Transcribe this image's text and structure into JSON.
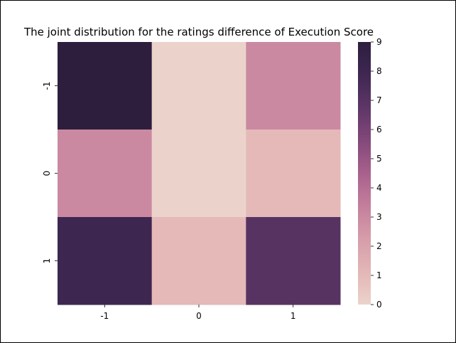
{
  "chart_data": {
    "type": "heatmap",
    "title": "The joint distribution for the ratings difference of Execution Score",
    "xlabel": "",
    "ylabel": "",
    "x_categories": [
      "-1",
      "0",
      "1"
    ],
    "y_categories": [
      "-1",
      "0",
      "1"
    ],
    "values": [
      [
        9,
        0,
        3
      ],
      [
        3,
        0,
        1
      ],
      [
        8,
        1,
        7
      ]
    ],
    "colorbar": {
      "min": 0,
      "max": 9,
      "ticks": [
        "0",
        "1",
        "2",
        "3",
        "4",
        "5",
        "6",
        "7",
        "8",
        "9"
      ]
    },
    "colors": {
      "low": "#ebd3cb",
      "high": "#2d1e3e"
    },
    "grid": false
  }
}
